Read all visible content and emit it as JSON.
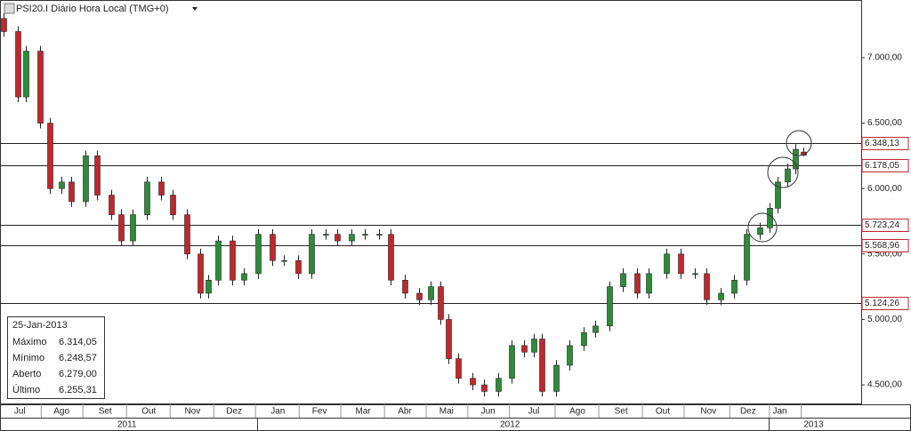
{
  "chart_data": {
    "type": "candlestick",
    "title": "PSI20.I Diário Hora Local (TMG+0)",
    "up_color": "#2e8b3a",
    "down_color": "#c0282d",
    "xlim": [
      0,
      434
    ],
    "ylim": [
      4351,
      7441
    ],
    "yticks": [
      {
        "value": 7000,
        "label": "7.000,00"
      },
      {
        "value": 6500,
        "label": "6.500,00"
      },
      {
        "value": 6000,
        "label": "6.000,00"
      },
      {
        "value": 5500,
        "label": "5.500,00"
      },
      {
        "value": 5000,
        "label": "5.000,00"
      },
      {
        "value": 4500,
        "label": "4.500,00"
      }
    ],
    "xticks": [
      {
        "value": 10,
        "label": "Jul"
      },
      {
        "value": 31,
        "label": "Ago"
      },
      {
        "value": 53,
        "label": "Set"
      },
      {
        "value": 75,
        "label": "Out"
      },
      {
        "value": 97,
        "label": "Nov"
      },
      {
        "value": 118,
        "label": "Dez"
      },
      {
        "value": 140,
        "label": "Jan"
      },
      {
        "value": 161,
        "label": "Fev"
      },
      {
        "value": 183,
        "label": "Mar"
      },
      {
        "value": 204,
        "label": "Abr"
      },
      {
        "value": 225,
        "label": "Mai"
      },
      {
        "value": 246,
        "label": "Jun"
      },
      {
        "value": 269,
        "label": "Jul"
      },
      {
        "value": 291,
        "label": "Ago"
      },
      {
        "value": 313,
        "label": "Set"
      },
      {
        "value": 334,
        "label": "Out"
      },
      {
        "value": 357,
        "label": "Nov"
      },
      {
        "value": 377,
        "label": "Dez"
      },
      {
        "value": 393,
        "label": "Jan"
      }
    ],
    "years": [
      {
        "value": 64,
        "label": "2011"
      },
      {
        "value": 257,
        "label": "2012"
      },
      {
        "value": 410,
        "label": "2013"
      }
    ],
    "levels": [
      {
        "value": 6348.13,
        "label": "6.348,13"
      },
      {
        "value": 6178.05,
        "label": "6.178,05"
      },
      {
        "value": 5723.24,
        "label": "5.723,24"
      },
      {
        "value": 5568.96,
        "label": "5.568,96"
      },
      {
        "value": 5124.26,
        "label": "5.124,26"
      }
    ],
    "x": [
      2,
      9,
      13,
      20,
      25,
      31,
      36,
      43,
      49,
      56,
      61,
      67,
      74,
      81,
      87,
      94,
      101,
      105,
      110,
      117,
      123,
      130,
      137,
      143,
      150,
      157,
      164,
      170,
      177,
      184,
      191,
      197,
      204,
      211,
      217,
      222,
      226,
      231,
      238,
      244,
      251,
      258,
      264,
      269,
      273,
      280,
      287,
      294,
      300,
      307,
      314,
      321,
      327,
      336,
      343,
      350,
      356,
      363,
      370,
      376,
      383,
      388,
      392,
      397,
      401,
      405
    ],
    "open": [
      7300,
      7200,
      6700,
      7050,
      6500,
      6000,
      6050,
      5900,
      6250,
      5950,
      5800,
      5600,
      5800,
      6050,
      5950,
      5800,
      5500,
      5200,
      5300,
      5600,
      5300,
      5350,
      5650,
      5450,
      5450,
      5350,
      5650,
      5650,
      5600,
      5650,
      5650,
      5650,
      5300,
      5200,
      5150,
      5250,
      5000,
      4700,
      4550,
      4500,
      4450,
      4550,
      4800,
      4750,
      4850,
      4450,
      4650,
      4800,
      4900,
      4950,
      5250,
      5350,
      5200,
      5350,
      5500,
      5350,
      5350,
      5150,
      5200,
      5300,
      5650,
      5700,
      5850,
      6050,
      6150,
      6279
    ],
    "high": [
      7340,
      7240,
      7090,
      7090,
      6540,
      6090,
      6090,
      6290,
      6290,
      5990,
      5840,
      5840,
      6090,
      6090,
      5990,
      5840,
      5540,
      5340,
      5640,
      5640,
      5390,
      5690,
      5690,
      5490,
      5490,
      5690,
      5690,
      5690,
      5690,
      5690,
      5690,
      5690,
      5340,
      5240,
      5290,
      5290,
      5040,
      4740,
      4590,
      4540,
      4590,
      4840,
      4840,
      4890,
      4890,
      4690,
      4840,
      4940,
      4990,
      5290,
      5390,
      5390,
      5390,
      5540,
      5540,
      5390,
      5390,
      5240,
      5340,
      5690,
      5740,
      5890,
      6090,
      6190,
      6340,
      6314.05
    ],
    "low": [
      7160,
      6660,
      6660,
      6460,
      5960,
      5960,
      5860,
      5860,
      5910,
      5760,
      5560,
      5560,
      5760,
      5910,
      5760,
      5460,
      5160,
      5160,
      5260,
      5260,
      5260,
      5310,
      5410,
      5410,
      5310,
      5310,
      5610,
      5560,
      5560,
      5610,
      5610,
      5260,
      5160,
      5110,
      5110,
      4960,
      4660,
      4510,
      4460,
      4410,
      4410,
      4510,
      4710,
      4710,
      4410,
      4410,
      4610,
      4760,
      4860,
      4910,
      5210,
      5160,
      5160,
      5310,
      5310,
      5310,
      5110,
      5110,
      5160,
      5260,
      5610,
      5660,
      5810,
      6010,
      6110,
      6248.57
    ],
    "close": [
      7200,
      6700,
      7050,
      6500,
      6000,
      6050,
      5900,
      6250,
      5950,
      5800,
      5600,
      5800,
      6050,
      5950,
      5800,
      5500,
      5200,
      5300,
      5600,
      5300,
      5350,
      5650,
      5450,
      5450,
      5350,
      5650,
      5650,
      5600,
      5650,
      5650,
      5650,
      5300,
      5200,
      5150,
      5250,
      5000,
      4700,
      4550,
      4500,
      4450,
      4550,
      4800,
      4750,
      4850,
      4450,
      4650,
      4800,
      4900,
      4950,
      5250,
      5350,
      5200,
      5350,
      5500,
      5350,
      5350,
      5150,
      5200,
      5300,
      5650,
      5700,
      5850,
      6050,
      6150,
      6300,
      6255.31
    ],
    "info_box": {
      "date": "25-Jan-2013",
      "rows": [
        {
          "label": "Máximo",
          "value": "6.314,05"
        },
        {
          "label": "Mínimo",
          "value": "6.248,57"
        },
        {
          "label": "Aberto",
          "value": "6.279,00"
        },
        {
          "label": "Último",
          "value": "6.255,31"
        }
      ]
    }
  }
}
